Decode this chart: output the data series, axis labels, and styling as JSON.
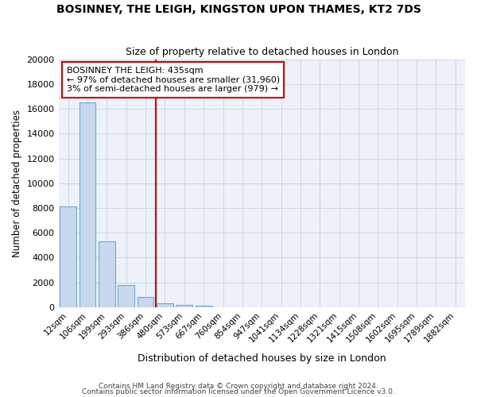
{
  "title": "BOSINNEY, THE LEIGH, KINGSTON UPON THAMES, KT2 7DS",
  "subtitle": "Size of property relative to detached houses in London",
  "xlabel": "Distribution of detached houses by size in London",
  "ylabel": "Number of detached properties",
  "bar_values": [
    8100,
    16500,
    5300,
    1800,
    800,
    300,
    200,
    150,
    0,
    0,
    0,
    0,
    0,
    0,
    0,
    0,
    0,
    0,
    0,
    0,
    0
  ],
  "bar_labels": [
    "12sqm",
    "106sqm",
    "199sqm",
    "293sqm",
    "386sqm",
    "480sqm",
    "573sqm",
    "667sqm",
    "760sqm",
    "854sqm",
    "947sqm",
    "1041sqm",
    "1134sqm",
    "1228sqm",
    "1321sqm",
    "1415sqm",
    "1508sqm",
    "1602sqm",
    "1695sqm",
    "1789sqm",
    "1882sqm"
  ],
  "bar_color": "#c8d8ee",
  "bar_edge_color": "#6aaad4",
  "grid_color": "#d0d8e8",
  "background_color": "#eef2f8",
  "vline_color": "#cc0000",
  "annotation_line1": "BOSINNEY THE LEIGH: 435sqm",
  "annotation_line2": "← 97% of detached houses are smaller (31,960)",
  "annotation_line3": "3% of semi-detached houses are larger (979) →",
  "ylim": [
    0,
    20000
  ],
  "yticks": [
    0,
    2000,
    4000,
    6000,
    8000,
    10000,
    12000,
    14000,
    16000,
    18000,
    20000
  ],
  "footnote1": "Contains HM Land Registry data © Crown copyright and database right 2024.",
  "footnote2": "Contains public sector information licensed under the Open Government Licence v3.0."
}
